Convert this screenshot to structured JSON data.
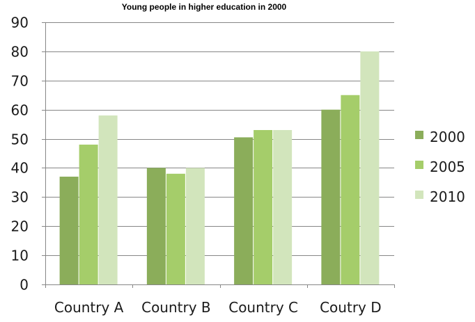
{
  "chart_data": {
    "type": "bar",
    "title": "Young people in higher education in 2000",
    "xlabel": "",
    "ylabel": "",
    "categories": [
      "Country A",
      "Country B",
      "Country C",
      "Coutry D"
    ],
    "series": [
      {
        "name": "2000",
        "values": [
          37,
          40,
          50.5,
          60
        ],
        "color": "#8bad5a"
      },
      {
        "name": "2005",
        "values": [
          48,
          38,
          53,
          65
        ],
        "color": "#a5cd6a"
      },
      {
        "name": "2010",
        "values": [
          58,
          40,
          53,
          80
        ],
        "color": "#d2e5bc"
      }
    ],
    "ylim": [
      0,
      90
    ],
    "yticks": [
      0,
      10,
      20,
      30,
      40,
      50,
      60,
      70,
      80,
      90
    ],
    "grid": true,
    "legend_position": "right"
  }
}
